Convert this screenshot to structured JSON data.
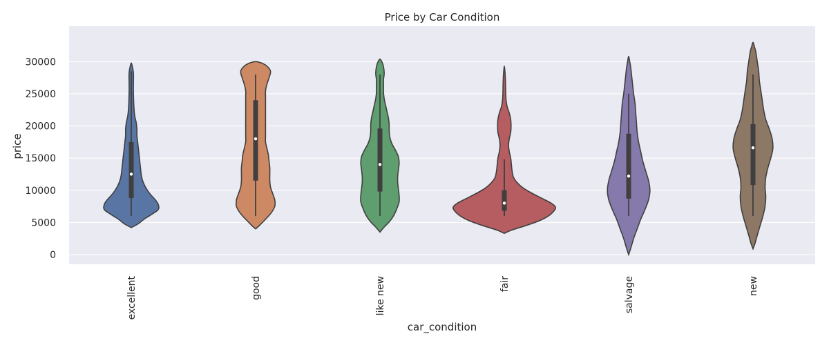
{
  "chart_data": {
    "type": "violin",
    "title": "Price by Car Condition",
    "xlabel": "car_condition",
    "ylabel": "price",
    "ylim": [
      -1500,
      35500
    ],
    "yticks": [
      0,
      5000,
      10000,
      15000,
      20000,
      25000,
      30000
    ],
    "grid": true,
    "categories": [
      "excellent",
      "good",
      "like new",
      "fair",
      "salvage",
      "new"
    ],
    "colors": [
      "#5975a4",
      "#cc8963",
      "#5f9e6e",
      "#b55d60",
      "#857aab",
      "#8d7866"
    ],
    "violins": [
      {
        "category": "excellent",
        "range": [
          4200,
          29800
        ],
        "box": {
          "whisker_low": 6000,
          "q1": 8800,
          "median": 12500,
          "q3": 17500,
          "whisker_high": 28500
        },
        "density": [
          [
            4200,
            0
          ],
          [
            4800,
            10
          ],
          [
            5500,
            18
          ],
          [
            6200,
            28
          ],
          [
            7000,
            38
          ],
          [
            7800,
            38
          ],
          [
            8500,
            34
          ],
          [
            9500,
            26
          ],
          [
            10500,
            20
          ],
          [
            11500,
            16
          ],
          [
            12500,
            14
          ],
          [
            13500,
            13
          ],
          [
            14500,
            12
          ],
          [
            15500,
            11
          ],
          [
            16500,
            10
          ],
          [
            17500,
            9
          ],
          [
            18500,
            8
          ],
          [
            19500,
            8
          ],
          [
            20500,
            7
          ],
          [
            21500,
            5
          ],
          [
            22500,
            4
          ],
          [
            23500,
            3.5
          ],
          [
            24500,
            3.2
          ],
          [
            25500,
            3
          ],
          [
            26500,
            3
          ],
          [
            27500,
            3.2
          ],
          [
            28300,
            3
          ],
          [
            29000,
            2
          ],
          [
            29800,
            0
          ]
        ]
      },
      {
        "category": "good",
        "range": [
          4000,
          30000
        ],
        "box": {
          "whisker_low": 6000,
          "q1": 11500,
          "median": 18000,
          "q3": 24000,
          "whisker_high": 28000
        },
        "density": [
          [
            4000,
            0
          ],
          [
            4600,
            6
          ],
          [
            5500,
            14
          ],
          [
            6500,
            22
          ],
          [
            7500,
            27
          ],
          [
            8500,
            27
          ],
          [
            9500,
            24
          ],
          [
            10500,
            21
          ],
          [
            11500,
            20
          ],
          [
            12500,
            20
          ],
          [
            13500,
            20
          ],
          [
            14500,
            19
          ],
          [
            15500,
            18
          ],
          [
            16500,
            16
          ],
          [
            17500,
            14
          ],
          [
            18500,
            14
          ],
          [
            19500,
            14
          ],
          [
            20500,
            14
          ],
          [
            21500,
            14
          ],
          [
            22500,
            14
          ],
          [
            23500,
            14
          ],
          [
            24500,
            14
          ],
          [
            25500,
            14
          ],
          [
            26500,
            16
          ],
          [
            27500,
            19
          ],
          [
            28500,
            21
          ],
          [
            29300,
            16
          ],
          [
            29800,
            8
          ],
          [
            30000,
            0
          ]
        ]
      },
      {
        "category": "like new",
        "range": [
          3500,
          30400
        ],
        "box": {
          "whisker_low": 6000,
          "q1": 9800,
          "median": 14000,
          "q3": 19600,
          "whisker_high": 28000
        },
        "density": [
          [
            3500,
            0
          ],
          [
            4300,
            6
          ],
          [
            5200,
            14
          ],
          [
            6200,
            20
          ],
          [
            7200,
            24
          ],
          [
            8200,
            27
          ],
          [
            9200,
            27
          ],
          [
            10200,
            26
          ],
          [
            11200,
            25
          ],
          [
            12200,
            25
          ],
          [
            13200,
            26
          ],
          [
            14200,
            27
          ],
          [
            15200,
            26
          ],
          [
            16200,
            22
          ],
          [
            17200,
            17
          ],
          [
            18200,
            14
          ],
          [
            19200,
            13
          ],
          [
            20200,
            13
          ],
          [
            21200,
            12
          ],
          [
            22200,
            10
          ],
          [
            23200,
            8
          ],
          [
            24200,
            6
          ],
          [
            25200,
            5
          ],
          [
            26200,
            5
          ],
          [
            27200,
            5
          ],
          [
            28200,
            6
          ],
          [
            29200,
            5
          ],
          [
            29900,
            3
          ],
          [
            30400,
            0
          ]
        ]
      },
      {
        "category": "fair",
        "range": [
          3300,
          29300
        ],
        "box": {
          "whisker_low": 6000,
          "q1": 6800,
          "median": 8000,
          "q3": 10000,
          "whisker_high": 14800
        },
        "density": [
          [
            3300,
            0
          ],
          [
            3800,
            10
          ],
          [
            4500,
            30
          ],
          [
            5200,
            48
          ],
          [
            6000,
            62
          ],
          [
            6800,
            70
          ],
          [
            7400,
            72
          ],
          [
            8000,
            66
          ],
          [
            8800,
            52
          ],
          [
            9600,
            38
          ],
          [
            10400,
            26
          ],
          [
            11200,
            18
          ],
          [
            12000,
            13
          ],
          [
            13000,
            11
          ],
          [
            14000,
            10
          ],
          [
            15000,
            9
          ],
          [
            16000,
            7
          ],
          [
            17000,
            6
          ],
          [
            18000,
            7
          ],
          [
            19000,
            9
          ],
          [
            20000,
            9.5
          ],
          [
            21000,
            9
          ],
          [
            22000,
            7
          ],
          [
            23000,
            4
          ],
          [
            24000,
            2.5
          ],
          [
            25000,
            2
          ],
          [
            26000,
            1.8
          ],
          [
            27000,
            1.6
          ],
          [
            28000,
            1.2
          ],
          [
            28800,
            0.6
          ],
          [
            29300,
            0
          ]
        ]
      },
      {
        "category": "salvage",
        "range": [
          0,
          30800
        ],
        "box": {
          "whisker_low": 6000,
          "q1": 8700,
          "median": 12200,
          "q3": 18800,
          "whisker_high": 25000
        },
        "density": [
          [
            0,
            0
          ],
          [
            1000,
            3
          ],
          [
            2500,
            7
          ],
          [
            4000,
            12
          ],
          [
            5500,
            17
          ],
          [
            7000,
            23
          ],
          [
            8500,
            28
          ],
          [
            10000,
            30
          ],
          [
            11500,
            28
          ],
          [
            13000,
            24
          ],
          [
            14500,
            20
          ],
          [
            16000,
            17
          ],
          [
            17500,
            14
          ],
          [
            19000,
            12
          ],
          [
            20500,
            11
          ],
          [
            22000,
            10
          ],
          [
            23500,
            9
          ],
          [
            25000,
            7
          ],
          [
            26500,
            5.5
          ],
          [
            28000,
            4
          ],
          [
            29000,
            3
          ],
          [
            30000,
            1.5
          ],
          [
            30800,
            0
          ]
        ]
      },
      {
        "category": "new",
        "range": [
          900,
          33000
        ],
        "box": {
          "whisker_low": 6000,
          "q1": 10800,
          "median": 16600,
          "q3": 20300,
          "whisker_high": 28000
        },
        "density": [
          [
            900,
            0
          ],
          [
            1800,
            3
          ],
          [
            3000,
            6
          ],
          [
            4500,
            10
          ],
          [
            6000,
            14
          ],
          [
            7500,
            17
          ],
          [
            9000,
            18
          ],
          [
            10500,
            17
          ],
          [
            12000,
            18
          ],
          [
            13500,
            21
          ],
          [
            15000,
            25
          ],
          [
            16500,
            28
          ],
          [
            18000,
            27
          ],
          [
            19500,
            23
          ],
          [
            21000,
            18
          ],
          [
            22500,
            15
          ],
          [
            24000,
            13
          ],
          [
            25500,
            11
          ],
          [
            27000,
            9
          ],
          [
            28500,
            8
          ],
          [
            30000,
            6
          ],
          [
            31500,
            4
          ],
          [
            32300,
            2
          ],
          [
            33000,
            0
          ]
        ]
      }
    ]
  }
}
